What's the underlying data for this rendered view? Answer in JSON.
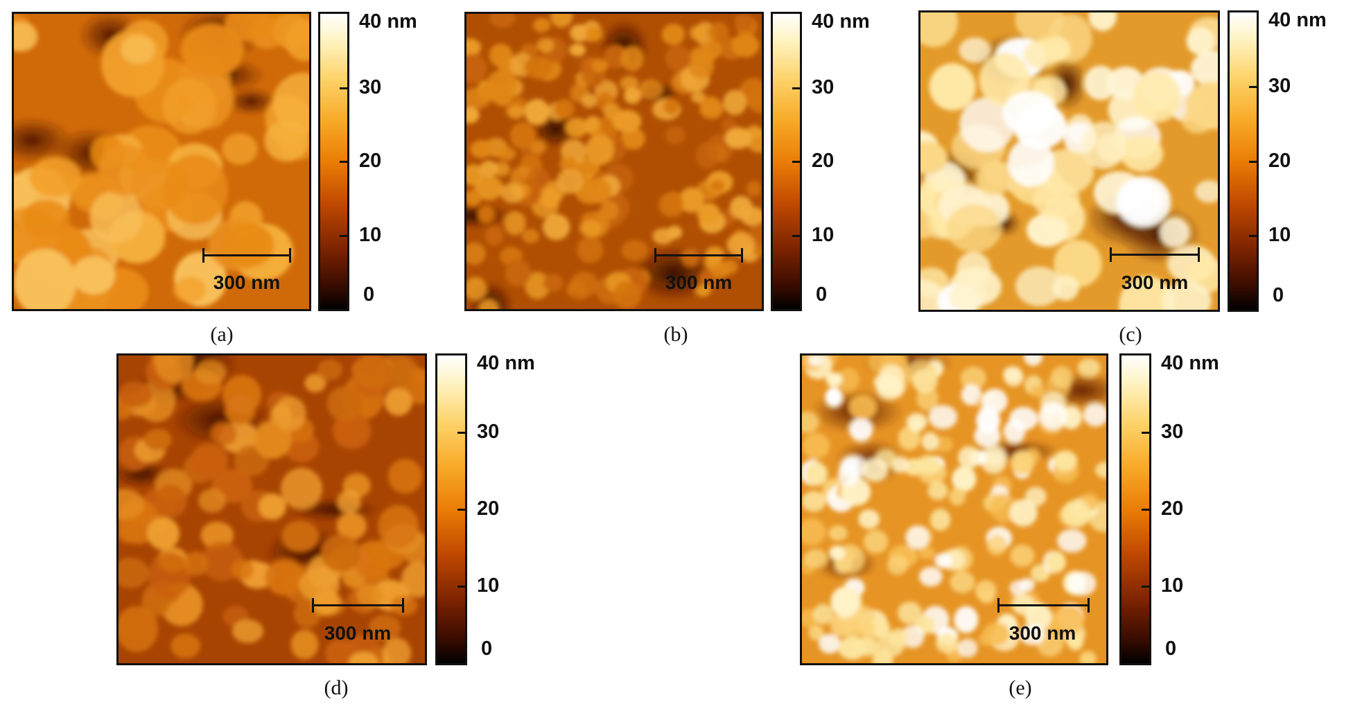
{
  "figure": {
    "panels": [
      {
        "id": "a",
        "caption": "(a)",
        "scale_bar": "300 nm",
        "colorbar_ticks": [
          "40 nm",
          "30",
          "20",
          "10",
          "0"
        ],
        "colorbar_range_nm": [
          0,
          40
        ],
        "brightness": "medium"
      },
      {
        "id": "b",
        "caption": "(b)",
        "scale_bar": "300 nm",
        "colorbar_ticks": [
          "40 nm",
          "30",
          "20",
          "10",
          "0"
        ],
        "colorbar_range_nm": [
          0,
          40
        ],
        "brightness": "medium-dark"
      },
      {
        "id": "c",
        "caption": "(c)",
        "scale_bar": "300 nm",
        "colorbar_ticks": [
          "40 nm",
          "30",
          "20",
          "10",
          "0"
        ],
        "colorbar_range_nm": [
          0,
          40
        ],
        "brightness": "bright"
      },
      {
        "id": "d",
        "caption": "(d)",
        "scale_bar": "300 nm",
        "colorbar_ticks": [
          "40 nm",
          "30",
          "20",
          "10",
          "0"
        ],
        "colorbar_range_nm": [
          0,
          40
        ],
        "brightness": "dark"
      },
      {
        "id": "e",
        "caption": "(e)",
        "scale_bar": "300 nm",
        "colorbar_ticks": [
          "40 nm",
          "30",
          "20",
          "10",
          "0"
        ],
        "colorbar_range_nm": [
          0,
          40
        ],
        "brightness": "bright-mixed"
      }
    ],
    "colors": {
      "low": "#000000",
      "mid": "#ea7d06",
      "high": "#ffffff",
      "frame": "#111111"
    }
  }
}
